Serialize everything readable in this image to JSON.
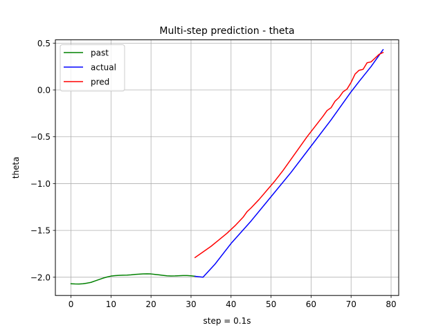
{
  "chart_data": {
    "type": "line",
    "title": "Multi-step prediction - theta",
    "xlabel": "step = 0.1s",
    "ylabel": "theta",
    "xlim": [
      -3.9,
      81.9
    ],
    "ylim": [
      -2.195,
      0.535
    ],
    "xticks": [
      0,
      10,
      20,
      30,
      40,
      50,
      60,
      70,
      80
    ],
    "xtick_labels": [
      "0",
      "10",
      "20",
      "30",
      "40",
      "50",
      "60",
      "70",
      "80"
    ],
    "yticks": [
      -2.0,
      -1.5,
      -1.0,
      -0.5,
      0.0,
      0.5
    ],
    "ytick_labels": [
      "−2.0",
      "−1.5",
      "−1.0",
      "−0.5",
      "0.0",
      "0.5"
    ],
    "grid": true,
    "legend_position": "upper-left",
    "series": [
      {
        "name": "past",
        "color": "#008000",
        "x": [
          0,
          1,
          2,
          3,
          4,
          5,
          6,
          7,
          8,
          9,
          10,
          11,
          12,
          13,
          14,
          15,
          16,
          17,
          18,
          19,
          20,
          21,
          22,
          23,
          24,
          25,
          26,
          27,
          28,
          29,
          30,
          31
        ],
        "y": [
          -2.07,
          -2.072,
          -2.073,
          -2.07,
          -2.063,
          -2.055,
          -2.04,
          -2.025,
          -2.01,
          -1.998,
          -1.988,
          -1.983,
          -1.98,
          -1.978,
          -1.977,
          -1.975,
          -1.97,
          -1.967,
          -1.965,
          -1.964,
          -1.965,
          -1.97,
          -1.975,
          -1.98,
          -1.985,
          -1.987,
          -1.986,
          -1.984,
          -1.982,
          -1.982,
          -1.985,
          -1.99
        ]
      },
      {
        "name": "actual",
        "color": "#0000ff",
        "x": [
          31,
          33,
          36,
          40,
          45,
          50,
          55,
          60,
          65,
          70,
          72,
          75,
          78
        ],
        "y": [
          -1.99,
          -2.0,
          -1.86,
          -1.64,
          -1.4,
          -1.14,
          -0.88,
          -0.6,
          -0.32,
          -0.02,
          0.09,
          0.25,
          0.43
        ]
      },
      {
        "name": "pred",
        "color": "#ff0000",
        "x": [
          31,
          33,
          35,
          37,
          39,
          41,
          43,
          44,
          45,
          47,
          49,
          51,
          53,
          55,
          57,
          59,
          61,
          63,
          64,
          65,
          66,
          67,
          68,
          69,
          70,
          71,
          72,
          73,
          74,
          75,
          76,
          77,
          78
        ],
        "y": [
          -1.79,
          -1.73,
          -1.67,
          -1.6,
          -1.53,
          -1.45,
          -1.36,
          -1.3,
          -1.26,
          -1.17,
          -1.07,
          -0.97,
          -0.86,
          -0.74,
          -0.62,
          -0.5,
          -0.39,
          -0.28,
          -0.22,
          -0.19,
          -0.12,
          -0.08,
          -0.02,
          0.01,
          0.08,
          0.17,
          0.21,
          0.22,
          0.29,
          0.3,
          0.34,
          0.38,
          0.4
        ]
      }
    ]
  }
}
